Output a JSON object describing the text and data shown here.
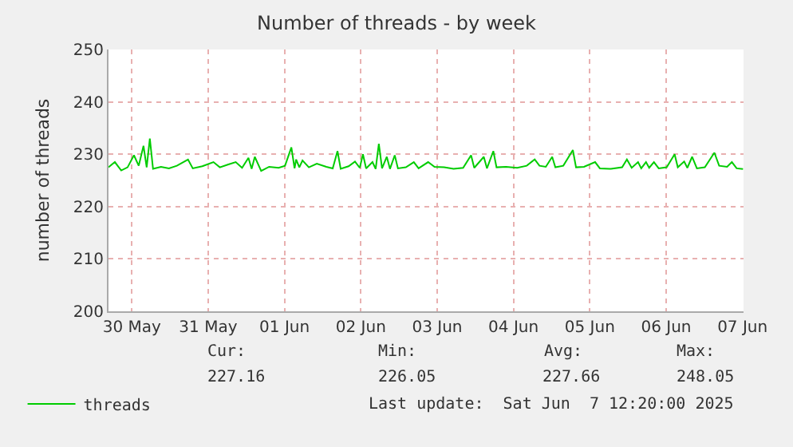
{
  "chart_data": {
    "type": "line",
    "title": "Number of threads - by week",
    "ylabel": "number of threads",
    "xlim": [
      "2025-05-30T04:40",
      "2025-06-07T12:20"
    ],
    "xticks": [
      {
        "value": "2025-05-30T12:00",
        "label": "30 May"
      },
      {
        "value": "2025-05-31T12:00",
        "label": "31 May"
      },
      {
        "value": "2025-06-01T12:00",
        "label": "01 Jun"
      },
      {
        "value": "2025-06-02T12:00",
        "label": "02 Jun"
      },
      {
        "value": "2025-06-03T12:00",
        "label": "03 Jun"
      },
      {
        "value": "2025-06-04T12:00",
        "label": "04 Jun"
      },
      {
        "value": "2025-06-05T12:00",
        "label": "05 Jun"
      },
      {
        "value": "2025-06-06T12:00",
        "label": "06 Jun"
      },
      {
        "value": "2025-06-07T12:00",
        "label": "07 Jun"
      }
    ],
    "ylim": [
      200,
      250
    ],
    "yticks": [
      200,
      210,
      220,
      230,
      240,
      250
    ],
    "grid": true,
    "legend": "bottom left",
    "marker": "none",
    "line_style": "solid",
    "annotations": [
      "Cur:",
      "Min:",
      "Avg:",
      "Max:",
      "227.16",
      "226.05",
      "227.66",
      "248.05",
      "Last update:  Sat Jun  7 12:20:00 2025"
    ],
    "series": [
      {
        "name": "threads",
        "color": "#00cc00",
        "x": [
          "2025-05-30T04:40",
          "2025-05-30T06:40",
          "2025-05-30T08:40",
          "2025-05-30T10:40",
          "2025-05-30T12:40",
          "2025-05-30T14:10",
          "2025-05-30T15:40",
          "2025-05-30T16:40",
          "2025-05-30T17:40",
          "2025-05-30T18:40",
          "2025-05-30T21:10",
          "2025-05-30T23:40",
          "2025-05-31T02:10",
          "2025-05-31T05:40",
          "2025-05-31T07:10",
          "2025-05-31T10:10",
          "2025-05-31T13:40",
          "2025-05-31T15:40",
          "2025-05-31T18:10",
          "2025-05-31T20:40",
          "2025-05-31T22:40",
          "2025-06-01T00:40",
          "2025-06-01T01:40",
          "2025-06-01T02:40",
          "2025-06-01T04:40",
          "2025-06-01T07:10",
          "2025-06-01T10:10",
          "2025-06-01T12:10",
          "2025-06-01T14:10",
          "2025-06-01T15:10",
          "2025-06-01T15:40",
          "2025-06-01T16:40",
          "2025-06-01T17:40",
          "2025-06-01T19:40",
          "2025-06-01T22:10",
          "2025-06-02T01:10",
          "2025-06-02T03:10",
          "2025-06-02T04:40",
          "2025-06-02T05:40",
          "2025-06-02T08:10",
          "2025-06-02T10:10",
          "2025-06-02T11:40",
          "2025-06-02T12:40",
          "2025-06-02T13:40",
          "2025-06-02T15:40",
          "2025-06-02T16:40",
          "2025-06-02T17:40",
          "2025-06-02T18:40",
          "2025-06-02T20:10",
          "2025-06-02T21:10",
          "2025-06-02T22:40",
          "2025-06-02T23:40",
          "2025-06-03T02:10",
          "2025-06-03T04:40",
          "2025-06-03T06:10",
          "2025-06-03T09:10",
          "2025-06-03T11:10",
          "2025-06-03T14:10",
          "2025-06-03T17:10",
          "2025-06-03T20:10",
          "2025-06-03T22:40",
          "2025-06-03T23:40",
          "2025-06-04T02:40",
          "2025-06-04T03:40",
          "2025-06-04T05:40",
          "2025-06-04T06:40",
          "2025-06-04T09:40",
          "2025-06-04T13:10",
          "2025-06-04T16:10",
          "2025-06-04T18:40",
          "2025-06-04T20:10",
          "2025-06-04T22:10",
          "2025-06-05T00:10",
          "2025-06-05T01:10",
          "2025-06-05T03:40",
          "2025-06-05T06:40",
          "2025-06-05T07:40",
          "2025-06-05T10:10",
          "2025-06-05T13:40",
          "2025-06-05T15:10",
          "2025-06-05T18:40",
          "2025-06-05T22:10",
          "2025-06-05T23:40",
          "2025-06-06T01:10",
          "2025-06-06T03:10",
          "2025-06-06T04:10",
          "2025-06-06T05:40",
          "2025-06-06T06:40",
          "2025-06-06T08:10",
          "2025-06-06T09:40",
          "2025-06-06T12:10",
          "2025-06-06T14:40",
          "2025-06-06T15:40",
          "2025-06-06T17:40",
          "2025-06-06T18:40",
          "2025-06-06T20:10",
          "2025-06-06T21:40",
          "2025-06-07T00:10",
          "2025-06-07T03:10",
          "2025-06-07T04:40",
          "2025-06-07T07:10",
          "2025-06-07T08:40",
          "2025-06-07T10:10",
          "2025-06-07T12:10"
        ],
        "values": [
          227.5,
          228.5,
          226.9,
          227.5,
          229.8,
          227.8,
          231.6,
          227.5,
          233,
          227.2,
          227.6,
          227.3,
          227.8,
          229,
          227.3,
          227.7,
          228.5,
          227.5,
          228,
          228.5,
          227.4,
          229.3,
          227.2,
          229.5,
          226.8,
          227.6,
          227.4,
          227.8,
          231.3,
          227.3,
          229,
          227.5,
          228.8,
          227.5,
          228.2,
          227.6,
          227.3,
          230.6,
          227.2,
          227.7,
          228.6,
          227.4,
          230,
          227.3,
          228.5,
          227.2,
          232,
          227.3,
          229.5,
          227.2,
          229.8,
          227.3,
          227.5,
          228.5,
          227.3,
          228.5,
          227.6,
          227.5,
          227.2,
          227.4,
          229.8,
          227.4,
          229.5,
          227.3,
          230.6,
          227.5,
          227.6,
          227.4,
          227.8,
          229,
          227.8,
          227.6,
          229.5,
          227.5,
          227.8,
          230.8,
          227.5,
          227.6,
          228.5,
          227.3,
          227.2,
          227.5,
          229,
          227.4,
          228.5,
          227.3,
          228.5,
          227.4,
          228.5,
          227.3,
          227.5,
          230,
          227.5,
          228.6,
          227.4,
          229.5,
          227.3,
          227.5,
          230.3,
          227.8,
          227.6,
          228.5,
          227.3,
          227.16
        ]
      }
    ]
  }
}
